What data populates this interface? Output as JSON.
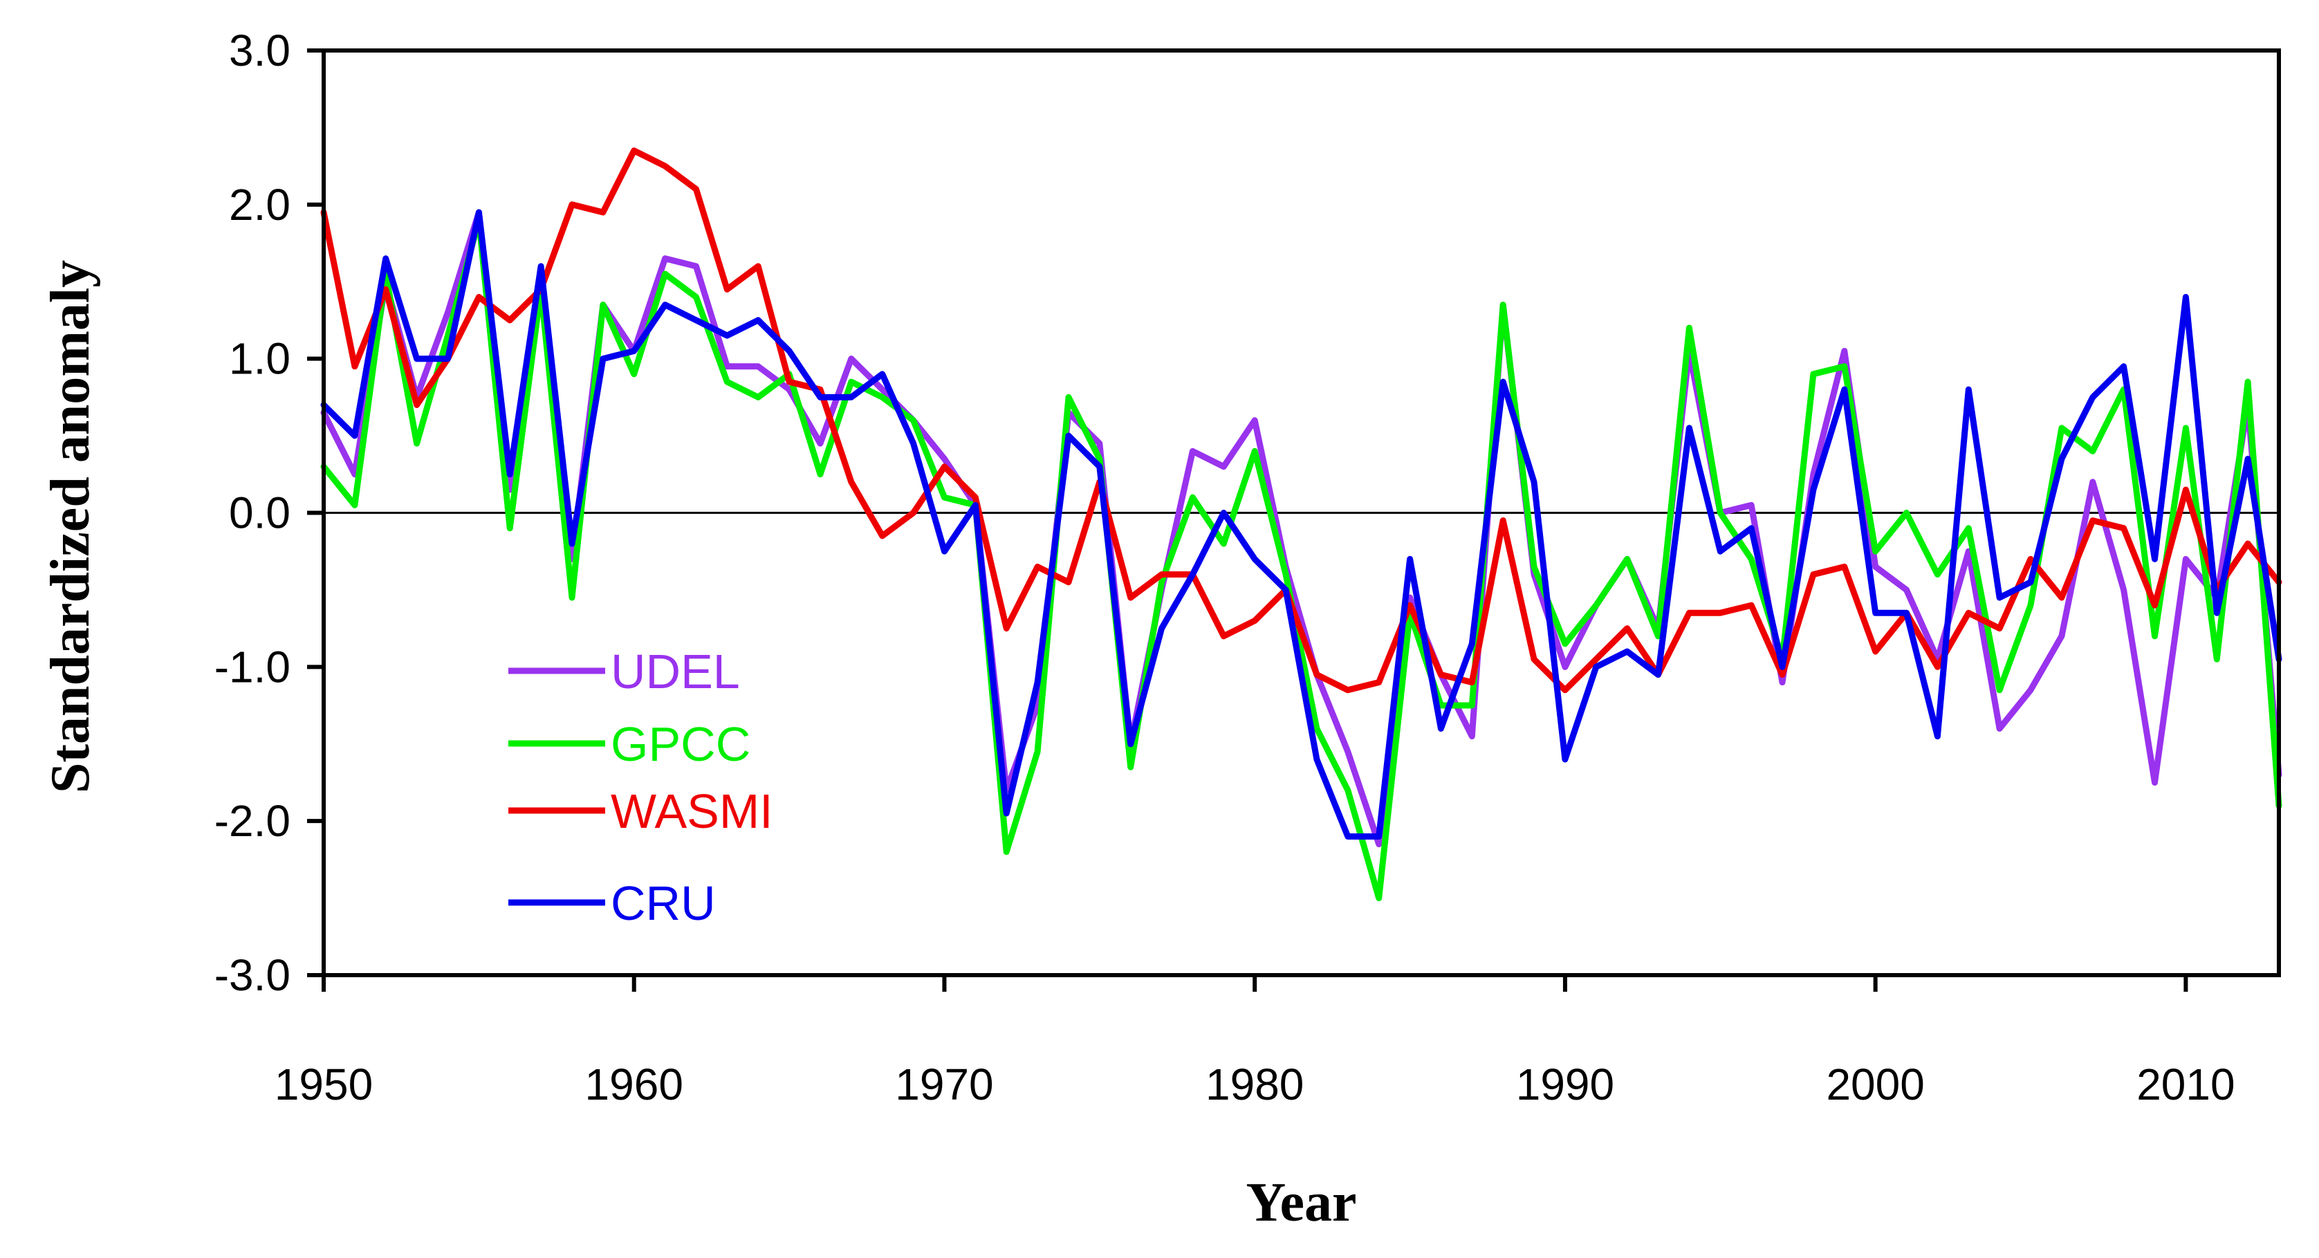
{
  "chart_data": {
    "type": "line",
    "title": "",
    "xlabel": "Year",
    "ylabel": "Standardized anomaly",
    "xlim": [
      1950,
      2013
    ],
    "ylim": [
      -3.0,
      3.0
    ],
    "x_ticks": [
      1950,
      1960,
      1970,
      1980,
      1990,
      2000,
      2010
    ],
    "x_tick_labels": [
      "1950",
      "1960",
      "1970",
      "1980",
      "1990",
      "2000",
      "2010"
    ],
    "y_ticks": [
      3.0,
      2.0,
      1.0,
      0.0,
      -1.0,
      -2.0,
      -3.0
    ],
    "y_tick_labels": [
      "3.0",
      "2.0",
      "1.0",
      "0.0",
      "-1.0",
      "-2.0",
      "-3.0"
    ],
    "reference_line_y": 0.0,
    "grid": false,
    "legend_position": "bottom-left inside",
    "x": [
      1950,
      1951,
      1952,
      1953,
      1954,
      1955,
      1956,
      1957,
      1958,
      1959,
      1960,
      1961,
      1962,
      1963,
      1964,
      1965,
      1966,
      1967,
      1968,
      1969,
      1970,
      1971,
      1972,
      1973,
      1974,
      1975,
      1976,
      1977,
      1978,
      1979,
      1980,
      1981,
      1982,
      1983,
      1984,
      1985,
      1986,
      1987,
      1988,
      1989,
      1990,
      1991,
      1992,
      1993,
      1994,
      1995,
      1996,
      1997,
      1998,
      1999,
      2000,
      2001,
      2002,
      2003,
      2004,
      2005,
      2006,
      2007,
      2008,
      2009,
      2010,
      2011,
      2012,
      2013
    ],
    "series": [
      {
        "name": "UDEL",
        "color": "#9933ee",
        "values": [
          0.65,
          0.25,
          1.5,
          0.75,
          1.3,
          1.95,
          0.15,
          1.5,
          -0.3,
          1.35,
          1.05,
          1.65,
          1.6,
          0.95,
          0.95,
          0.8,
          0.45,
          1.0,
          0.8,
          0.6,
          0.35,
          0.05,
          -1.8,
          -1.25,
          0.65,
          0.45,
          -1.5,
          -0.5,
          0.4,
          0.3,
          0.6,
          -0.35,
          -1.05,
          -1.55,
          -2.15,
          -0.55,
          -1.05,
          -1.45,
          1.35,
          -0.4,
          -1.0,
          -0.6,
          -0.3,
          -0.75,
          1.05,
          0.0,
          0.05,
          -1.1,
          0.25,
          1.05,
          -0.35,
          -0.5,
          -0.95,
          -0.25,
          -1.4,
          -1.15,
          -0.8,
          0.2,
          -0.5,
          -1.75,
          -0.3,
          -0.55,
          0.7,
          -1.7
        ]
      },
      {
        "name": "GPCC",
        "color": "#00ee00",
        "values": [
          0.3,
          0.05,
          1.55,
          0.45,
          1.15,
          1.9,
          -0.1,
          1.45,
          -0.55,
          1.35,
          0.9,
          1.55,
          1.4,
          0.85,
          0.75,
          0.9,
          0.25,
          0.85,
          0.75,
          0.6,
          0.1,
          0.05,
          -2.2,
          -1.55,
          0.75,
          0.35,
          -1.65,
          -0.45,
          0.1,
          -0.2,
          0.4,
          -0.4,
          -1.4,
          -1.8,
          -2.5,
          -0.65,
          -1.25,
          -1.25,
          1.35,
          -0.35,
          -0.85,
          -0.6,
          -0.3,
          -0.8,
          1.2,
          0.0,
          -0.3,
          -0.95,
          0.9,
          0.95,
          -0.25,
          0.0,
          -0.4,
          -0.1,
          -1.15,
          -0.6,
          0.55,
          0.4,
          0.8,
          -0.8,
          0.55,
          -0.95,
          0.85,
          -1.9
        ]
      },
      {
        "name": "WASMI",
        "color": "#ee0000",
        "values": [
          1.95,
          0.95,
          1.45,
          0.7,
          1.0,
          1.4,
          1.25,
          1.45,
          2.0,
          1.95,
          2.35,
          2.25,
          2.1,
          1.45,
          1.6,
          0.85,
          0.8,
          0.2,
          -0.15,
          0.0,
          0.3,
          0.1,
          -0.75,
          -0.35,
          -0.45,
          0.2,
          -0.55,
          -0.4,
          -0.4,
          -0.8,
          -0.7,
          -0.5,
          -1.05,
          -1.15,
          -1.1,
          -0.6,
          -1.05,
          -1.1,
          -0.05,
          -0.95,
          -1.15,
          -0.95,
          -0.75,
          -1.05,
          -0.65,
          -0.65,
          -0.6,
          -1.05,
          -0.4,
          -0.35,
          -0.9,
          -0.65,
          -1.0,
          -0.65,
          -0.75,
          -0.3,
          -0.55,
          -0.05,
          -0.1,
          -0.6,
          0.15,
          -0.5,
          -0.2,
          -0.45
        ]
      },
      {
        "name": "CRU",
        "color": "#0000ee",
        "values": [
          0.7,
          0.5,
          1.65,
          1.0,
          1.0,
          1.95,
          0.25,
          1.6,
          -0.2,
          1.0,
          1.05,
          1.35,
          1.25,
          1.15,
          1.25,
          1.05,
          0.75,
          0.75,
          0.9,
          0.45,
          -0.25,
          0.05,
          -1.95,
          -1.1,
          0.5,
          0.3,
          -1.5,
          -0.75,
          -0.4,
          0.0,
          -0.3,
          -0.5,
          -1.6,
          -2.1,
          -2.1,
          -0.3,
          -1.4,
          -0.85,
          0.85,
          0.2,
          -1.6,
          -1.0,
          -0.9,
          -1.05,
          0.55,
          -0.25,
          -0.1,
          -1.0,
          0.15,
          0.8,
          -0.65,
          -0.65,
          -1.45,
          0.8,
          -0.55,
          -0.45,
          0.35,
          0.75,
          0.95,
          -0.3,
          1.4,
          -0.65,
          0.35,
          -0.95
        ]
      }
    ]
  }
}
